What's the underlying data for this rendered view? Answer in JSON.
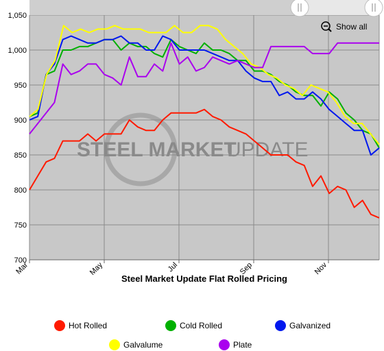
{
  "chart_data": {
    "type": "line",
    "title": "Steel Market Update Flat Rolled Pricing",
    "watermark": {
      "part1": "STEEL MARKET",
      "part2": "UPDATE"
    },
    "x_ticks": [
      "Mar",
      "May",
      "Jul",
      "Sep",
      "Nov"
    ],
    "ylim": [
      700,
      1050
    ],
    "y_ticks": [
      700,
      750,
      800,
      850,
      900,
      950,
      1000,
      1050
    ],
    "y_tick_labels": [
      "700",
      "750",
      "800",
      "850",
      "900",
      "950",
      "1,000",
      "1,050"
    ],
    "grid": true,
    "legend_position": "bottom",
    "show_all_label": "Show all",
    "background_color": "#c8c8c8",
    "series": [
      {
        "name": "Hot Rolled",
        "color": "#ff1a00",
        "values": [
          800,
          820,
          840,
          845,
          870,
          870,
          870,
          880,
          870,
          880,
          880,
          880,
          900,
          890,
          885,
          885,
          900,
          910,
          910,
          910,
          910,
          915,
          905,
          900,
          890,
          885,
          880,
          870,
          860,
          850,
          850,
          850,
          840,
          835,
          805,
          820,
          795,
          805,
          800,
          775,
          785,
          765,
          760
        ]
      },
      {
        "name": "Cold Rolled",
        "color": "#00b000",
        "values": [
          905,
          910,
          965,
          970,
          1000,
          1000,
          1005,
          1005,
          1010,
          1015,
          1015,
          1000,
          1010,
          1005,
          1005,
          995,
          990,
          1015,
          1005,
          1000,
          995,
          1010,
          1000,
          1000,
          995,
          985,
          985,
          970,
          970,
          965,
          955,
          950,
          940,
          935,
          935,
          920,
          940,
          930,
          910,
          900,
          885,
          880,
          860
        ]
      },
      {
        "name": "Galvanized",
        "color": "#0018ee",
        "values": [
          900,
          905,
          965,
          980,
          1015,
          1020,
          1015,
          1010,
          1010,
          1015,
          1015,
          1020,
          1010,
          1010,
          1000,
          1000,
          1020,
          1015,
          1000,
          1000,
          1000,
          1000,
          995,
          990,
          985,
          985,
          970,
          960,
          955,
          955,
          935,
          940,
          930,
          930,
          940,
          930,
          915,
          905,
          895,
          885,
          885,
          850,
          860
        ]
      },
      {
        "name": "Galvalume",
        "color": "#ffff00",
        "values": [
          905,
          915,
          965,
          985,
          1035,
          1025,
          1030,
          1025,
          1030,
          1030,
          1035,
          1030,
          1030,
          1030,
          1025,
          1025,
          1025,
          1035,
          1025,
          1025,
          1035,
          1035,
          1030,
          1015,
          1005,
          995,
          980,
          975,
          965,
          960,
          950,
          945,
          935,
          950,
          945,
          940,
          925,
          905,
          895,
          895,
          880,
          865
        ]
      },
      {
        "name": "Plate",
        "color": "#aa00ee",
        "values": [
          880,
          895,
          910,
          925,
          980,
          965,
          970,
          980,
          980,
          965,
          960,
          950,
          990,
          962,
          962,
          980,
          970,
          1010,
          980,
          990,
          970,
          975,
          990,
          985,
          980,
          985,
          980,
          975,
          975,
          1005,
          1005,
          1005,
          1005,
          1005,
          995,
          995,
          995,
          1010,
          1010,
          1010,
          1010,
          1010,
          1010
        ]
      }
    ]
  }
}
